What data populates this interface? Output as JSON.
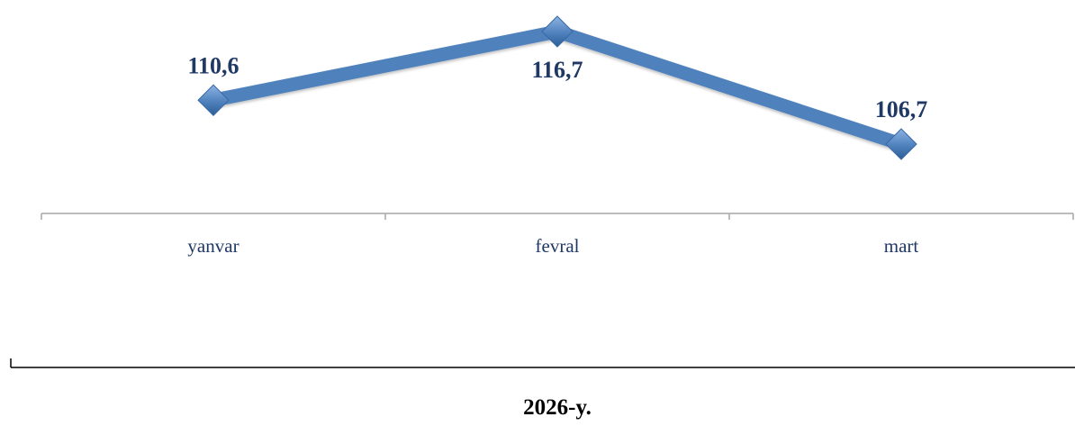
{
  "chart_data": {
    "type": "line",
    "categories": [
      "yanvar",
      "fevral",
      "mart"
    ],
    "series": [
      {
        "values": [
          110.6,
          116.7,
          106.7
        ],
        "color": "#4f81bd",
        "marker": "diamond"
      }
    ],
    "data_labels": [
      "110,6",
      "116,7",
      "106,7"
    ],
    "group_label": "2026-y.",
    "ylim": [
      102,
      119
    ],
    "grid": false,
    "legend": "none",
    "colors": {
      "line": "#4f81bd",
      "marker": "#4f81bd",
      "label_text": "#1f3864",
      "axis": "#a6a6a6",
      "group_axis": "#000000"
    }
  }
}
